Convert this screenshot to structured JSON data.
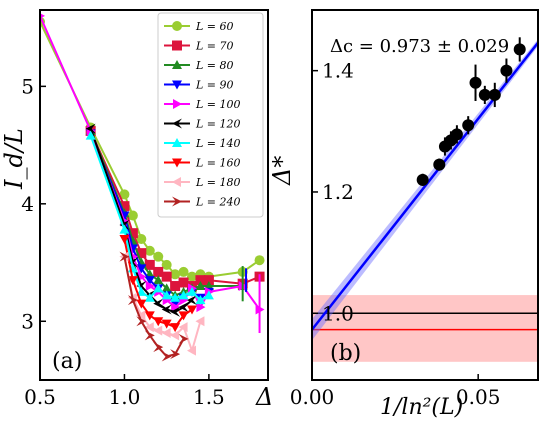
{
  "chart_data": [
    {
      "type": "line",
      "panel_label": "(a)",
      "xlabel": "Δ",
      "ylabel": "I_d/L",
      "xlim": [
        0.5,
        1.85
      ],
      "ylim": [
        2.5,
        5.65
      ],
      "xticks": [
        0.5,
        1.0,
        1.5
      ],
      "xtick_labels": [
        "0.5",
        "1.0",
        "1.5"
      ],
      "yticks": [
        3,
        4,
        5
      ],
      "ytick_labels": [
        "3",
        "4",
        "5"
      ],
      "legend_position": "top-right",
      "series": [
        {
          "name": "L = 60",
          "color": "#9acd32",
          "marker": "circle",
          "x": [
            0.5,
            0.8,
            1.0,
            1.05,
            1.1,
            1.15,
            1.2,
            1.25,
            1.3,
            1.35,
            1.4,
            1.45,
            1.5,
            1.7,
            1.8
          ],
          "y": [
            5.55,
            4.65,
            4.08,
            3.9,
            3.7,
            3.6,
            3.55,
            3.48,
            3.4,
            3.42,
            3.38,
            3.4,
            3.38,
            3.42,
            3.52
          ]
        },
        {
          "name": "L = 70",
          "color": "#dc143c",
          "marker": "square",
          "x": [
            0.8,
            1.0,
            1.05,
            1.1,
            1.15,
            1.2,
            1.25,
            1.3,
            1.35,
            1.4,
            1.45,
            1.5,
            1.7,
            1.8
          ],
          "y": [
            4.62,
            3.98,
            3.75,
            3.58,
            3.48,
            3.42,
            3.38,
            3.3,
            3.33,
            3.3,
            3.35,
            3.35,
            3.32,
            3.38
          ]
        },
        {
          "name": "L = 80",
          "color": "#228b22",
          "marker": "triangle-up",
          "x": [
            0.8,
            1.0,
            1.05,
            1.1,
            1.15,
            1.2,
            1.25,
            1.3,
            1.35,
            1.4,
            1.45,
            1.5,
            1.7
          ],
          "y": [
            4.62,
            3.92,
            3.68,
            3.5,
            3.4,
            3.35,
            3.28,
            3.22,
            3.25,
            3.28,
            3.3,
            3.3,
            3.3
          ]
        },
        {
          "name": "L = 90",
          "color": "#0000ff",
          "marker": "triangle-down",
          "x": [
            0.8,
            1.0,
            1.05,
            1.1,
            1.15,
            1.2,
            1.25,
            1.3,
            1.35,
            1.4,
            1.45,
            1.5
          ],
          "y": [
            4.6,
            3.9,
            3.62,
            3.45,
            3.35,
            3.28,
            3.22,
            3.15,
            3.2,
            3.25,
            3.2,
            3.25
          ]
        },
        {
          "name": "L = 100",
          "color": "#ff00ff",
          "marker": "triangle-right",
          "x": [
            0.5,
            0.8,
            1.0,
            1.05,
            1.1,
            1.15,
            1.2,
            1.25,
            1.3,
            1.35,
            1.4,
            1.45,
            1.5,
            1.7,
            1.8
          ],
          "y": [
            5.6,
            4.62,
            3.85,
            3.55,
            3.38,
            3.3,
            3.25,
            3.18,
            3.12,
            3.18,
            3.28,
            3.12,
            3.25,
            3.3,
            3.1
          ]
        },
        {
          "name": "L = 120",
          "color": "#000000",
          "marker": "tri-left",
          "x": [
            0.8,
            1.0,
            1.05,
            1.1,
            1.15,
            1.2,
            1.25,
            1.3,
            1.35,
            1.4
          ],
          "y": [
            4.64,
            3.82,
            3.5,
            3.3,
            3.22,
            3.15,
            3.1,
            3.08,
            3.12,
            3.18
          ]
        },
        {
          "name": "L = 140",
          "color": "#00ffff",
          "marker": "triangle-up",
          "x": [
            0.8,
            1.0,
            1.05,
            1.1,
            1.15,
            1.2,
            1.25,
            1.3,
            1.35,
            1.4,
            1.45,
            1.5
          ],
          "y": [
            4.58,
            3.78,
            3.45,
            3.25,
            3.2,
            3.28,
            3.22,
            3.2,
            3.22,
            3.25,
            3.18,
            3.22
          ]
        },
        {
          "name": "L = 160",
          "color": "#ff0000",
          "marker": "triangle-down",
          "x": [
            1.0,
            1.05,
            1.1,
            1.15,
            1.2,
            1.25,
            1.3,
            1.35,
            1.4
          ],
          "y": [
            3.7,
            3.35,
            3.15,
            3.05,
            3.0,
            2.98,
            2.95,
            3.05,
            3.1
          ]
        },
        {
          "name": "L = 180",
          "color": "#ffb6c1",
          "marker": "triangle-left",
          "x": [
            1.0,
            1.05,
            1.1,
            1.15,
            1.2,
            1.25,
            1.3,
            1.35,
            1.4,
            1.45
          ],
          "y": [
            3.55,
            3.2,
            3.05,
            2.95,
            2.92,
            2.9,
            2.88,
            2.95,
            2.75,
            3.0
          ]
        },
        {
          "name": "L = 240",
          "color": "#b22222",
          "marker": "tri-right",
          "x": [
            1.0,
            1.05,
            1.1,
            1.15,
            1.2,
            1.25,
            1.3,
            1.35
          ],
          "y": [
            3.55,
            3.18,
            3.0,
            2.88,
            2.78,
            2.7,
            2.72,
            2.85
          ]
        }
      ]
    },
    {
      "type": "scatter",
      "panel_label": "(b)",
      "annotation": "Δc = 0.973 ± 0.029",
      "xlabel": "1/ln²(L)",
      "ylabel": "Δ*",
      "xlim": [
        0.0,
        0.068
      ],
      "ylim": [
        0.89,
        1.5
      ],
      "xticks": [
        0.0,
        0.05
      ],
      "xtick_labels": [
        "0.00",
        "0.05"
      ],
      "yticks": [
        1.0,
        1.2,
        1.4
      ],
      "ytick_labels": [
        "1.0",
        "1.2",
        "1.4"
      ],
      "points": {
        "x": [
          0.0333,
          0.0383,
          0.04,
          0.0418,
          0.0436,
          0.047,
          0.0492,
          0.052,
          0.055,
          0.0585,
          0.0625
        ],
        "y": [
          1.22,
          1.245,
          1.275,
          1.285,
          1.295,
          1.31,
          1.38,
          1.36,
          1.36,
          1.4,
          1.435
        ],
        "yerr": [
          0.01,
          0.01,
          0.015,
          0.015,
          0.015,
          0.015,
          0.03,
          0.015,
          0.02,
          0.02,
          0.02
        ]
      },
      "fit_line": {
        "x": [
          0.0,
          0.068
        ],
        "y": [
          0.973,
          1.446
        ],
        "color": "#0000ff",
        "band": 0.029
      },
      "reference_line": {
        "y": 1.0,
        "color": "#000000"
      },
      "critical_value": {
        "y": 0.973,
        "band": [
          0.92,
          1.03
        ],
        "color": "#ff0000"
      }
    }
  ]
}
